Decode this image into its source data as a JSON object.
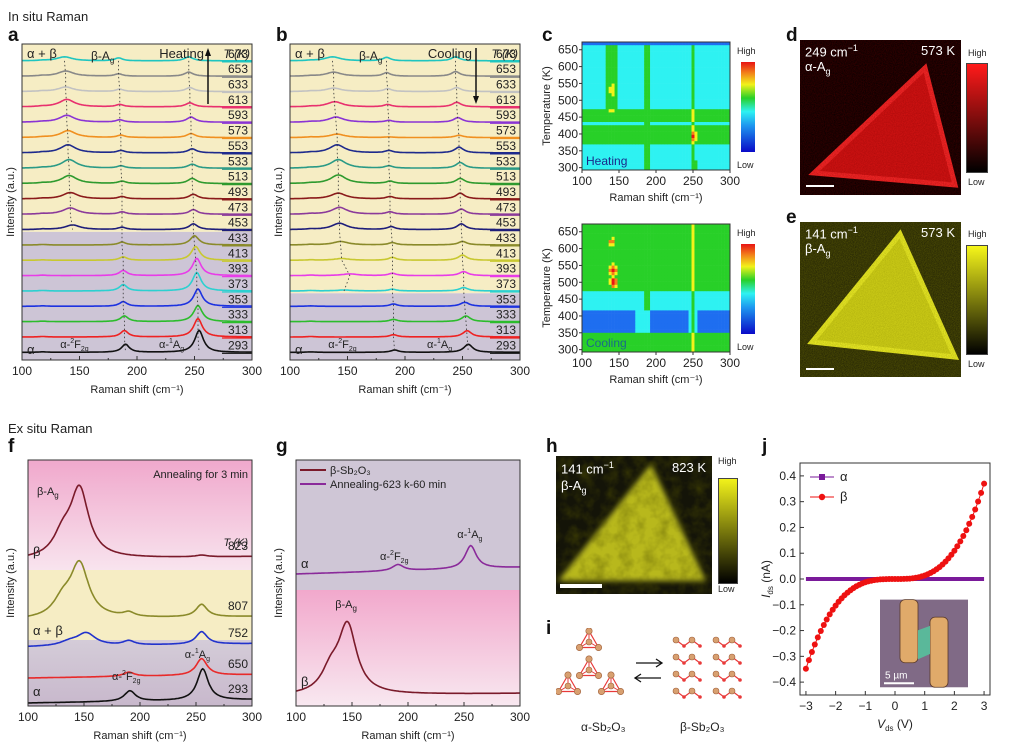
{
  "sections": {
    "in_situ": "In situ  Raman",
    "ex_situ": "Ex situ Raman"
  },
  "panel_labels": {
    "a": "a",
    "b": "b",
    "c": "c",
    "d": "d",
    "e": "e",
    "f": "f",
    "g": "g",
    "h": "h",
    "i": "i",
    "j": "j"
  },
  "colors": {
    "beige_bg": "#f6edc4",
    "lilac_bg": "#cdc5d6",
    "pink_bg": "#f2b6d2",
    "trace_colors": [
      "#1fc5c0",
      "#888888",
      "#c2c2c2",
      "#e8306e",
      "#8a34d4",
      "#f09020",
      "#1e2a8c",
      "#2a9a86",
      "#2e9a2e",
      "#8a1a1a",
      "#8b3a9a",
      "#1e1e7a",
      "#8a8a2a",
      "#c8c830",
      "#e83ce8",
      "#2cd0d0",
      "#1c32e0",
      "#2cbc2c",
      "#ee2222",
      "#111111"
    ]
  },
  "chart_data": [
    {
      "id": "a",
      "type": "line",
      "title": "",
      "xlabel": "Raman shift (cm⁻¹)",
      "ylabel": "Intensity (a.u.)",
      "xlim": [
        100,
        300
      ],
      "xticks": [
        "100",
        "150",
        "200",
        "250",
        "300"
      ],
      "mode_label": "Heating",
      "temp_header": "T (K)",
      "phase_top": "α + β",
      "phase_bottom": "α",
      "annotations": {
        "beta": "β-A",
        "beta_sub": "g",
        "f2g": "α-",
        "f2g_sup": "2",
        "f2g_main": "F",
        "f2g_sub": "2g",
        "a1g": "α-",
        "a1g_sup": "1",
        "a1g_main": "A",
        "a1g_sub": "g"
      },
      "temperatures": [
        "673",
        "653",
        "633",
        "613",
        "593",
        "573",
        "553",
        "533",
        "513",
        "493",
        "473",
        "453",
        "433",
        "413",
        "393",
        "373",
        "353",
        "333",
        "313",
        "293"
      ],
      "beta_region_last_index": 11,
      "peaks": {
        "beta_Ag": [
          137,
          138,
          138,
          139,
          139,
          140,
          140,
          141,
          141,
          142,
          142,
          144,
          0,
          0,
          0,
          0,
          0,
          0,
          0,
          0
        ],
        "F2g": [
          184,
          184,
          185,
          185,
          185,
          186,
          186,
          186,
          187,
          187,
          187,
          187,
          187,
          188,
          188,
          188,
          188,
          189,
          189,
          190
        ],
        "Ag1": [
          245,
          245,
          246,
          246,
          247,
          247,
          248,
          248,
          248,
          249,
          249,
          249,
          250,
          251,
          252,
          252,
          253,
          253,
          253,
          254
        ]
      },
      "amps": {
        "beta_Ag": [
          0.35,
          0.45,
          0.4,
          0.65,
          0.6,
          0.6,
          0.7,
          0.75,
          0.7,
          0.55,
          0.55,
          0.4,
          0,
          0,
          0,
          0,
          0,
          0,
          0,
          0
        ],
        "F2g": [
          0.25,
          0.2,
          0.2,
          0.2,
          0.2,
          0.2,
          0.2,
          0.2,
          0.2,
          0.2,
          0.2,
          0.2,
          0.25,
          0.3,
          0.45,
          0.55,
          0.4,
          0.5,
          0.55,
          0.7
        ],
        "Ag1": [
          0.35,
          0.35,
          0.35,
          0.35,
          0.45,
          0.35,
          0.35,
          0.35,
          0.45,
          0.4,
          0.4,
          0.5,
          0.8,
          1.2,
          1.5,
          1.6,
          1.5,
          1.4,
          1.6,
          1.9
        ]
      }
    },
    {
      "id": "b",
      "type": "line",
      "xlabel": "Raman shift (cm⁻¹)",
      "ylabel": "Intensity (a.u.)",
      "xlim": [
        100,
        300
      ],
      "xticks": [
        "100",
        "150",
        "200",
        "250",
        "300"
      ],
      "mode_label": "Cooling",
      "temp_header": "T (K)",
      "phase_top": "α + β",
      "phase_bottom": "α",
      "temperatures": [
        "673",
        "653",
        "633",
        "613",
        "593",
        "573",
        "553",
        "533",
        "513",
        "493",
        "473",
        "453",
        "433",
        "413",
        "393",
        "373",
        "353",
        "333",
        "313",
        "293"
      ],
      "beta_region_last_index": 15,
      "peaks": {
        "beta_Ag": [
          137,
          138,
          138,
          139,
          140,
          141,
          141,
          142,
          142,
          142,
          143,
          143,
          144,
          145,
          152,
          147,
          0,
          0,
          0,
          0
        ],
        "F2g": [
          184,
          184,
          185,
          185,
          186,
          186,
          186,
          186,
          187,
          187,
          187,
          188,
          189,
          189,
          189,
          189,
          190,
          190,
          190,
          191
        ],
        "Ag1": [
          244,
          244,
          245,
          245,
          246,
          247,
          247,
          248,
          248,
          248,
          249,
          249,
          250,
          250,
          251,
          251,
          252,
          253,
          254,
          255
        ]
      },
      "amps": {
        "beta_Ag": [
          0.35,
          0.35,
          0.3,
          0.45,
          0.45,
          0.3,
          0.7,
          0.75,
          0.75,
          0.5,
          0.6,
          0.55,
          0.3,
          0.15,
          0.15,
          0.08,
          0,
          0,
          0,
          0
        ],
        "F2g": [
          0.3,
          0.3,
          0.25,
          0.2,
          0.15,
          0.05,
          0.2,
          0.2,
          0.2,
          0.2,
          0.2,
          0.25,
          0.2,
          0.25,
          0.2,
          0.15,
          0.2,
          0.2,
          0.2,
          0.2
        ],
        "Ag1": [
          0.35,
          0.4,
          0.35,
          0.4,
          0.4,
          0.2,
          0.5,
          0.5,
          0.45,
          0.5,
          0.45,
          0.5,
          0.3,
          0.45,
          0.35,
          0.3,
          0.35,
          0.5,
          0.55,
          0.7
        ]
      }
    },
    {
      "id": "c-top",
      "type": "heatmap",
      "xlabel": "Raman shift (cm⁻¹)",
      "ylabel": "Temperature (K)",
      "xlim": [
        100,
        300
      ],
      "ylim": [
        293,
        673
      ],
      "xticks": [
        "100",
        "150",
        "200",
        "250",
        "300"
      ],
      "yticks": [
        "300",
        "350",
        "400",
        "450",
        "500",
        "550",
        "600",
        "650"
      ],
      "mode_label": "Heating",
      "colorbar": {
        "high": "High",
        "low": "Low"
      },
      "hotspots": [
        {
          "x": 141,
          "y": 530,
          "level": 0.7,
          "sx": 6,
          "sy": 40
        },
        {
          "x": 141,
          "y": 475,
          "level": 0.65,
          "sx": 5,
          "sy": 8
        },
        {
          "x": 140,
          "y": 630,
          "level": 0.5,
          "sx": 6,
          "sy": 20
        },
        {
          "x": 251,
          "y": 395,
          "level": 0.95,
          "sx": 4,
          "sy": 22
        },
        {
          "x": 252,
          "y": 310,
          "level": 0.7,
          "sx": 3,
          "sy": 15
        },
        {
          "x": 188,
          "y": 400,
          "level": 0.55,
          "sx": 4,
          "sy": 20
        },
        {
          "x": 250,
          "y": 460,
          "level": 0.5,
          "sx": 4,
          "sy": 20
        }
      ]
    },
    {
      "id": "c-bottom",
      "type": "heatmap",
      "xlabel": "Raman shift (cm⁻¹)",
      "ylabel": "Temperature (K)",
      "xlim": [
        100,
        300
      ],
      "ylim": [
        293,
        673
      ],
      "xticks": [
        "100",
        "150",
        "200",
        "250",
        "300"
      ],
      "yticks": [
        "300",
        "350",
        "400",
        "450",
        "500",
        "550",
        "600",
        "650"
      ],
      "mode_label": "Cooling",
      "colorbar": {
        "high": "High",
        "low": "Low"
      },
      "hotspots": [
        {
          "x": 141,
          "y": 620,
          "level": 0.9,
          "sx": 5,
          "sy": 15
        },
        {
          "x": 142,
          "y": 535,
          "level": 0.95,
          "sx": 6,
          "sy": 22
        },
        {
          "x": 143,
          "y": 500,
          "level": 1.0,
          "sx": 6,
          "sy": 18
        },
        {
          "x": 248,
          "y": 555,
          "level": 0.75,
          "sx": 3,
          "sy": 15
        },
        {
          "x": 248,
          "y": 515,
          "level": 0.7,
          "sx": 3,
          "sy": 15
        },
        {
          "x": 253,
          "y": 330,
          "level": 0.6,
          "sx": 3,
          "sy": 20
        },
        {
          "x": 188,
          "y": 560,
          "level": 0.5,
          "sx": 3,
          "sy": 15
        }
      ]
    },
    {
      "id": "f",
      "type": "line",
      "xlabel": "Raman shift (cm⁻¹)",
      "ylabel": "Intensity (a.u.)",
      "xlim": [
        100,
        300
      ],
      "xticks": [
        "100",
        "150",
        "200",
        "250",
        "300"
      ],
      "note": "Annealing for 3 min",
      "temp_header": "T (K)",
      "phase_labels": [
        "β",
        "α + β",
        "α"
      ],
      "series": [
        {
          "name": "823",
          "color": "#7a1a2a",
          "beta": [
            146,
            1.9
          ],
          "F2g": [
            190,
            0
          ],
          "Ag1": [
            255,
            0.04
          ]
        },
        {
          "name": "807",
          "color": "#8a8a2a",
          "beta": [
            146,
            1.5
          ],
          "F2g": [
            190,
            0.1
          ],
          "Ag1": [
            255,
            0.3
          ]
        },
        {
          "name": "752",
          "color": "#2233cc",
          "beta": [
            152,
            0.35
          ],
          "F2g": [
            190,
            0.1
          ],
          "Ag1": [
            255,
            0.3
          ]
        },
        {
          "name": "650",
          "color": "#e82a2a",
          "beta": [
            150,
            0
          ],
          "F2g": [
            190,
            0.1
          ],
          "Ag1": [
            255,
            0.4
          ]
        },
        {
          "name": "293",
          "color": "#111111",
          "beta": [
            150,
            0
          ],
          "F2g": [
            191,
            0.25
          ],
          "Ag1": [
            256,
            0.75
          ]
        }
      ]
    },
    {
      "id": "g",
      "type": "line",
      "xlabel": "Raman shift (cm⁻¹)",
      "ylabel": "Intensity (a.u.)",
      "xlim": [
        100,
        300
      ],
      "xticks": [
        "100",
        "150",
        "200",
        "250",
        "300"
      ],
      "legend": [
        {
          "label": "β-Sb₂O₃",
          "color": "#7a1a2a"
        },
        {
          "label": "Annealing-623 k-60 min",
          "color": "#8a2a9a"
        }
      ],
      "phase_labels": [
        "α",
        "β"
      ],
      "series": [
        {
          "name": "Annealing-623 k-60 min",
          "color": "#8a2a9a",
          "F2g": [
            191,
            0.15
          ],
          "Ag1": [
            256,
            0.55
          ]
        },
        {
          "name": "β-Sb₂O₃",
          "color": "#7a1a2a",
          "beta": [
            146,
            1.9
          ]
        }
      ]
    },
    {
      "id": "j",
      "type": "scatter",
      "xlabel": "V",
      "xlabel_sub": "ds",
      "xlabel_unit": " (V)",
      "ylabel": "I",
      "ylabel_sub": "ds",
      "ylabel_unit": " (nA)",
      "xlim": [
        -3.2,
        3.2
      ],
      "ylim": [
        -0.45,
        0.45
      ],
      "xticks": [
        "-3",
        "-2",
        "-1",
        "0",
        "1",
        "2",
        "3"
      ],
      "yticks": [
        "-0.4",
        "-0.3",
        "-0.2",
        "-0.1",
        "0.0",
        "0.1",
        "0.2",
        "0.3",
        "0.4"
      ],
      "legend": [
        {
          "label": "α",
          "color": "#7a1a9a",
          "marker": "square"
        },
        {
          "label": "β",
          "color": "#ee1111",
          "marker": "circle"
        }
      ],
      "series": [
        {
          "name": "α",
          "x_range": [
            -3,
            3
          ],
          "y_constant": 0.0
        },
        {
          "name": "β",
          "x_range": [
            -3,
            3
          ],
          "step": 0.1,
          "approx_endpoints": {
            "x=-3": -0.35,
            "x=3": 0.37
          },
          "model": "cubic"
        }
      ],
      "inset_scale_label": "5 µm"
    }
  ],
  "maps": {
    "d": {
      "wavenumber": "249 cm",
      "sup": "−1",
      "temp": "573 K",
      "mode": "α-A",
      "mode_sub": "g",
      "high": "High",
      "low": "Low",
      "color": "#ff1a1a"
    },
    "e": {
      "wavenumber": "141 cm",
      "sup": "−1",
      "temp": "573 K",
      "mode": "β-A",
      "mode_sub": "g",
      "high": "High",
      "low": "Low",
      "color": "#f2f21a"
    },
    "h": {
      "wavenumber": "141 cm",
      "sup": "−1",
      "temp": "823 K",
      "mode": "β-A",
      "mode_sub": "g",
      "high": "High",
      "low": "Low",
      "color": "#e6e61e"
    }
  },
  "structures": {
    "alpha_label": "α-Sb₂O₃",
    "beta_label": "β-Sb₂O₃",
    "alpha_color": "#8a3ac0",
    "beta_color": "#e83a3a"
  }
}
